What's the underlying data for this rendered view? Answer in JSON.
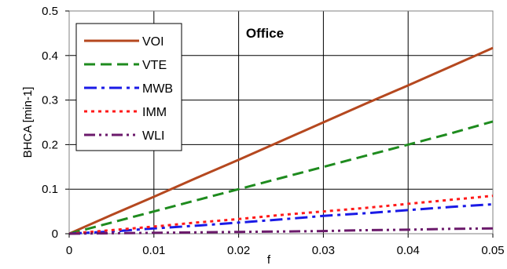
{
  "chart_data": {
    "type": "line",
    "title": "Office",
    "xlabel": "f",
    "ylabel": "BHCA [min-1]",
    "xlim": [
      0,
      0.05
    ],
    "ylim": [
      0,
      0.5
    ],
    "x_ticks": [
      "0",
      "0.01",
      "0.02",
      "0.03",
      "0.04",
      "0.05"
    ],
    "y_ticks": [
      "0",
      "0.1",
      "0.2",
      "0.3",
      "0.4",
      "0.5"
    ],
    "grid": true,
    "legend_position": "top-left",
    "series": [
      {
        "name": "VOI",
        "color": "#B5481F",
        "dash": "solid",
        "x": [
          0,
          0.005,
          0.01,
          0.015,
          0.02,
          0.025,
          0.03,
          0.035,
          0.04,
          0.045,
          0.05
        ],
        "y": [
          0,
          0.042,
          0.083,
          0.125,
          0.166,
          0.208,
          0.25,
          0.292,
          0.333,
          0.375,
          0.417
        ]
      },
      {
        "name": "VTE",
        "color": "#1E8B1E",
        "dash": "dashed",
        "x": [
          0,
          0.005,
          0.01,
          0.015,
          0.02,
          0.025,
          0.03,
          0.035,
          0.04,
          0.045,
          0.05
        ],
        "y": [
          0,
          0.025,
          0.05,
          0.075,
          0.1,
          0.125,
          0.15,
          0.175,
          0.2,
          0.225,
          0.252
        ]
      },
      {
        "name": "MWB",
        "color": "#1A1AE6",
        "dash": "dashdot",
        "x": [
          0,
          0.005,
          0.01,
          0.015,
          0.02,
          0.025,
          0.03,
          0.035,
          0.04,
          0.045,
          0.05
        ],
        "y": [
          0,
          0.005,
          0.012,
          0.018,
          0.025,
          0.032,
          0.04,
          0.046,
          0.053,
          0.06,
          0.066
        ]
      },
      {
        "name": "IMM",
        "color": "#FF1A1A",
        "dash": "dotted",
        "x": [
          0,
          0.005,
          0.01,
          0.015,
          0.02,
          0.025,
          0.03,
          0.035,
          0.04,
          0.045,
          0.05
        ],
        "y": [
          0,
          0.008,
          0.016,
          0.025,
          0.033,
          0.042,
          0.05,
          0.058,
          0.067,
          0.076,
          0.085
        ]
      },
      {
        "name": "WLI",
        "color": "#6B1A6B",
        "dash": "dashdotdot",
        "x": [
          0,
          0.005,
          0.01,
          0.015,
          0.02,
          0.025,
          0.03,
          0.035,
          0.04,
          0.045,
          0.05
        ],
        "y": [
          0,
          0.001,
          0.002,
          0.003,
          0.004,
          0.005,
          0.006,
          0.008,
          0.009,
          0.011,
          0.012
        ]
      }
    ]
  }
}
